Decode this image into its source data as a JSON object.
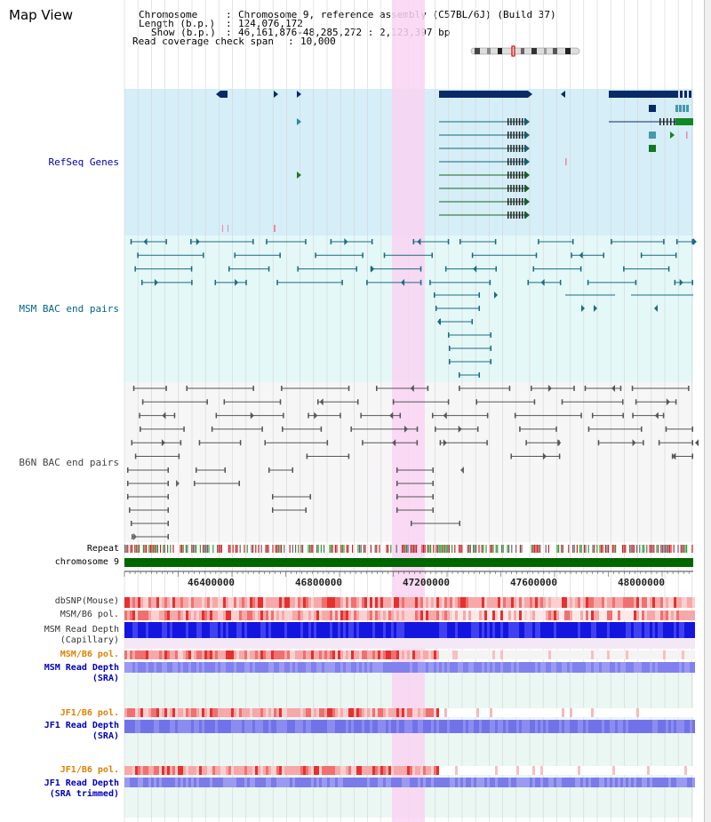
{
  "frame": {
    "title": "Map View"
  },
  "info": {
    "chromosome_label": "Chromosome",
    "chromosome_value": "Chromosome 9, reference assembly (C57BL/6J) (Build 37)",
    "length_label": "Length (b.p.)",
    "length_value": "124,076,172",
    "show_label": "Show (b.p.)",
    "show_value": "46,161,876-48,285,272 : 2,123,397 bp",
    "coverage_label": "Read coverage check span",
    "coverage_value": "10,000"
  },
  "tracks": {
    "refseq": "RefSeq Genes",
    "msm_bac": "MSM BAC end pairs",
    "b6n_bac": "B6N BAC end pairs",
    "repeat": "Repeat",
    "chromosome": "chromosome 9",
    "dbsnp": "dbSNP(Mouse)",
    "msm_b6_pol": "MSM/B6 pol.",
    "msm_depth_cap_1": "MSM Read Depth",
    "msm_depth_cap_2": "(Capillary)",
    "msm_b6_pol_2": "MSM/B6 pol.",
    "msm_depth_sra_1": "MSM Read Depth",
    "msm_depth_sra_2": "(SRA)",
    "jf1_pol_1": "JF1/B6 pol.",
    "jf1_depth_sra_1": "JF1 Read Depth",
    "jf1_depth_sra_2": "(SRA)",
    "jf1_pol_2": "JF1/B6 pol.",
    "jf1_depth_trim_1": "JF1 Read Depth",
    "jf1_depth_trim_2": "(SRA trimmed)"
  },
  "axis": {
    "ticks": [
      "46400000",
      "46800000",
      "47200000",
      "47600000",
      "48000000"
    ]
  },
  "colors": {
    "refseq_bg": "#d6eef8",
    "msm_bg": "#e4f8f8",
    "b6n_bg": "#f6f6f6",
    "highlight": "#f9d4f2",
    "chrom_bar": "#006600",
    "refseq_label": "#0000aa",
    "msm_label": "#006688",
    "b6n_label": "#444444",
    "pol_orange": "#e08000",
    "depth_blue": "#0000bb"
  }
}
